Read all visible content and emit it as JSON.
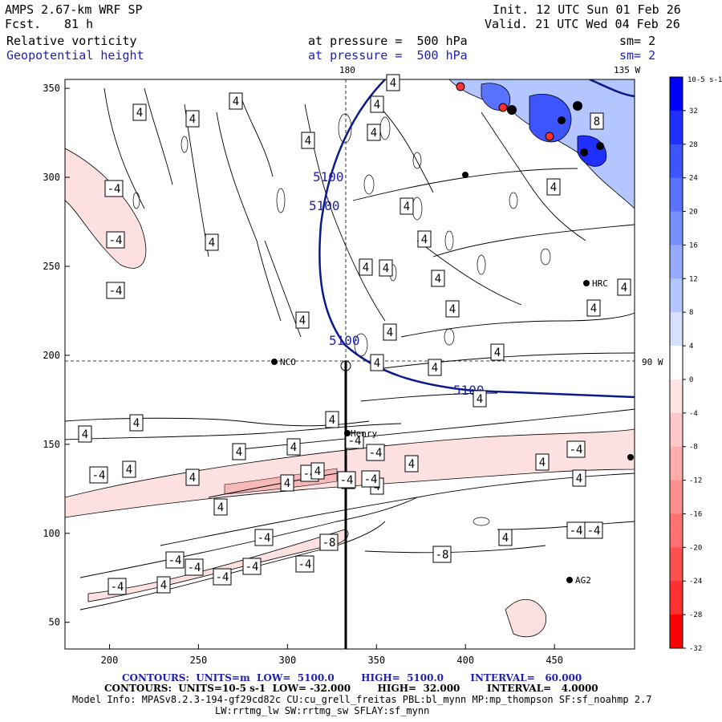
{
  "header": {
    "model": "AMPS 2.67-km WRF SP",
    "init": "Init. 12 UTC Sun 01 Feb 26",
    "fcst_label": "Fcst.",
    "fcst_value": "81 h",
    "valid": "Valid. 21 UTC Wed 04 Feb 26",
    "field1": "Relative vorticity",
    "field1_level": "at pressure =  500 hPa",
    "field1_sm": "sm= 2",
    "field2": "Geopotential height",
    "field2_level": "at pressure =  500 hPa",
    "field2_sm": "sm= 2"
  },
  "map_labels": {
    "lon_top": "180",
    "lon_right_top": "135 W",
    "lon_right": "90 W",
    "stations": [
      "NCO",
      "HRC",
      "Henry",
      "AG2"
    ]
  },
  "colors": {
    "height_contour": "#0a1a8c",
    "pos_fill_strong": "#0000ff",
    "neg_fill_light": "#fde0e0",
    "neg_fill_strong": "#ff2020"
  },
  "chart_data": {
    "type": "heatmap",
    "title": "Relative vorticity / Geopotential height at 500 hPa",
    "x_ticks": [
      200,
      250,
      300,
      350,
      400,
      450
    ],
    "y_ticks": [
      50,
      100,
      150,
      200,
      250,
      300,
      350
    ],
    "xlim": [
      175,
      495
    ],
    "ylim": [
      35,
      355
    ],
    "height_contour_value": 5100,
    "height_labels": [
      "5100",
      "5100",
      "5100",
      "5100"
    ],
    "vorticity_labels": [
      "4",
      "4",
      "4",
      "-4",
      "-4",
      "-4",
      "4",
      "4",
      "4",
      "4",
      "4",
      "4",
      "4",
      "4",
      "4",
      "4",
      "4",
      "4",
      "8",
      "4",
      "4",
      "4",
      "4",
      "4",
      "4",
      "4",
      "4",
      "4",
      "4",
      "4",
      "4",
      "-4",
      "-4",
      "-4",
      "-4",
      "-8",
      "-8",
      "-4",
      "-4",
      "-4",
      "-4",
      "-4",
      "-4",
      "-4",
      "4",
      "4",
      "4",
      "4",
      "4",
      "4",
      "4",
      "4",
      "4",
      "4",
      "4",
      "4",
      "-4",
      "-4",
      "-4",
      "-4",
      "-4",
      "4"
    ],
    "colorbar": {
      "units": "10^-5 s^-1",
      "unit_label": "10-5 s-1",
      "levels": [
        "32",
        "28",
        "24",
        "20",
        "16",
        "12",
        "8",
        "4",
        "0",
        "-4",
        "-8",
        "-12",
        "-16",
        "-20",
        "-24",
        "-28",
        "-32"
      ],
      "colors": [
        "#0000ff",
        "#1e2fff",
        "#3c55ff",
        "#5a73ff",
        "#7890ff",
        "#96abff",
        "#b4c6ff",
        "#d8e0ff",
        "#ffffff",
        "#ffe4e4",
        "#ffc8c8",
        "#ffacac",
        "#ff9090",
        "#ff7070",
        "#ff5050",
        "#ff3030",
        "#ff0000"
      ]
    }
  },
  "footer": {
    "line1": "CONTOURS:  UNITS=m  LOW=  5100.0        HIGH=  5100.0        INTERVAL=   60.000",
    "line2": "CONTOURS:  UNITS=10-5 s-1  LOW= -32.000        HIGH=  32.000        INTERVAL=   4.0000",
    "line3": "Model Info: MPASv8.2.3-194-gf29cd82c CU:cu_grell_freitas PBL:bl_mynn MP:mp_thompson SF:sf_noahmp 2.7",
    "line4": "LW:rrtmg_lw SW:rrtmg_sw SFLAY:sf_mynn"
  }
}
